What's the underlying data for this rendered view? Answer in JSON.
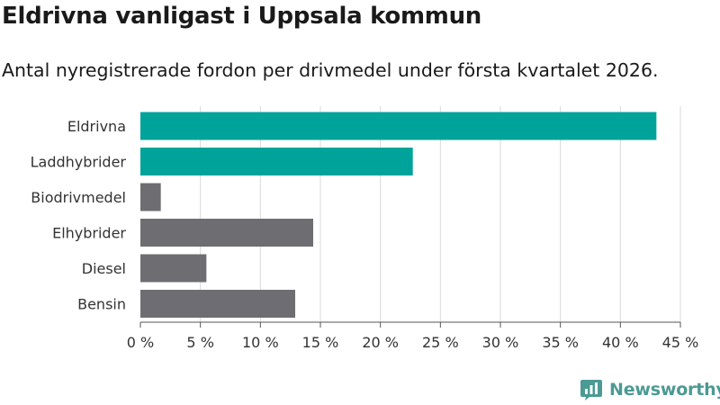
{
  "title": "Eldrivna vanligast i Uppsala kommun",
  "subtitle": "Antal nyregistrerade fordon per drivmedel under första kvartalet 2026.",
  "brand": {
    "name": "Newsworthy",
    "logo_icon": "bar-chart-logo-icon",
    "color": "#4b9a93"
  },
  "colors": {
    "highlight": "#00a39a",
    "default": "#6e6d72",
    "grid": "#d9d9d9",
    "axis": "#555555"
  },
  "chart_data": {
    "type": "bar",
    "orientation": "horizontal",
    "categories": [
      "Eldrivna",
      "Laddhybrider",
      "Biodrivmedel",
      "Elhybrider",
      "Diesel",
      "Bensin"
    ],
    "values": [
      43.0,
      22.7,
      1.7,
      14.4,
      5.5,
      12.9
    ],
    "highlighted": [
      true,
      true,
      false,
      false,
      false,
      false
    ],
    "xlim": [
      0,
      45
    ],
    "xticks": [
      0,
      5,
      10,
      15,
      20,
      25,
      30,
      35,
      40,
      45
    ],
    "xtick_labels": [
      "0 %",
      "5 %",
      "10 %",
      "15 %",
      "20 %",
      "25 %",
      "30 %",
      "35 %",
      "40 %",
      "45 %"
    ],
    "title": "Eldrivna vanligast i Uppsala kommun",
    "xlabel": "",
    "ylabel": "",
    "grid": true,
    "legend": "none"
  }
}
